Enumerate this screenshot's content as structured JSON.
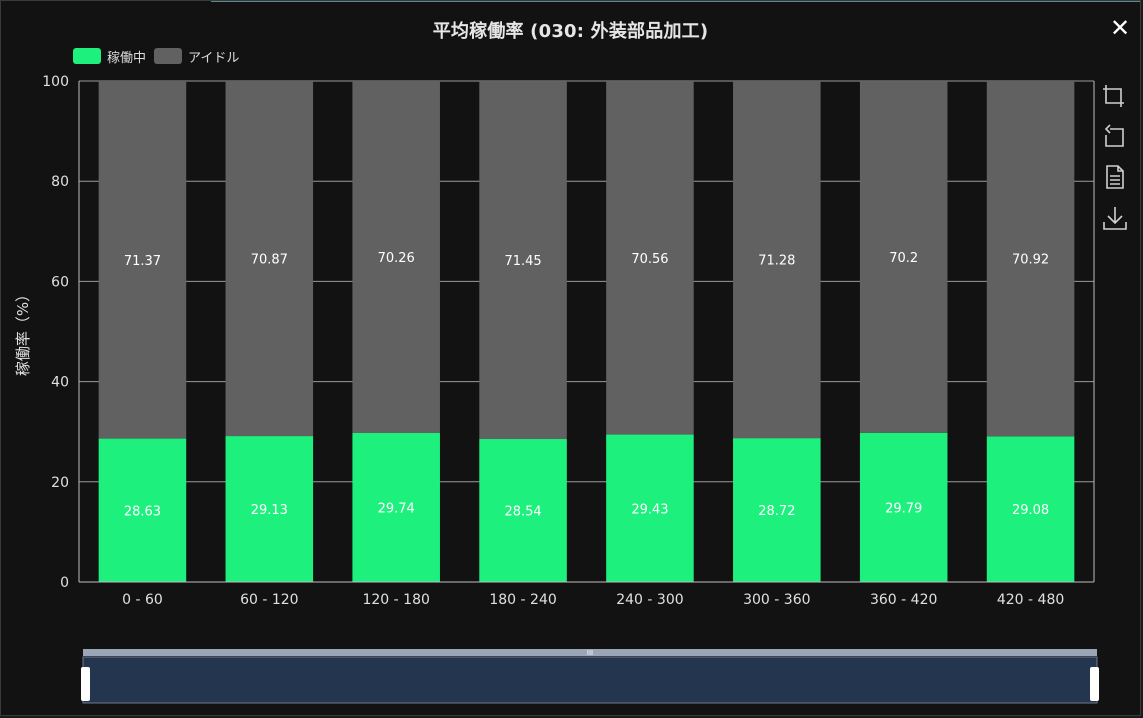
{
  "title": "平均稼働率 (030: 外装部品加工)",
  "close_glyph": "✕",
  "legend": [
    {
      "label": "稼働中",
      "color": "#1ef07e"
    },
    {
      "label": "アイドル",
      "color": "#616161"
    }
  ],
  "toolbox": [
    "zoom-icon",
    "zoom-reset-icon",
    "data-view-icon",
    "save-image-icon"
  ],
  "chart_data": {
    "type": "bar",
    "stacked": true,
    "title": "平均稼働率 (030: 外装部品加工)",
    "categories": [
      "0 - 60",
      "60 - 120",
      "120 - 180",
      "180 - 240",
      "240 - 300",
      "300 - 360",
      "360 - 420",
      "420 - 480"
    ],
    "series": [
      {
        "name": "稼働中",
        "color": "#1ef07e",
        "values": [
          28.63,
          29.13,
          29.74,
          28.54,
          29.43,
          28.72,
          29.79,
          29.08
        ]
      },
      {
        "name": "アイドル",
        "color": "#616161",
        "values": [
          71.37,
          70.87,
          70.26,
          71.45,
          70.56,
          71.28,
          70.2,
          70.92
        ]
      }
    ],
    "ylabel": "稼働率（%）",
    "xlabel": "",
    "ylim": [
      0,
      100
    ],
    "yticks": [
      0,
      20,
      40,
      60,
      80,
      100
    ],
    "grid": true,
    "legend_position": "top-left"
  },
  "datazoom": {
    "start": 0,
    "end": 100,
    "handle_glyph": "III"
  }
}
